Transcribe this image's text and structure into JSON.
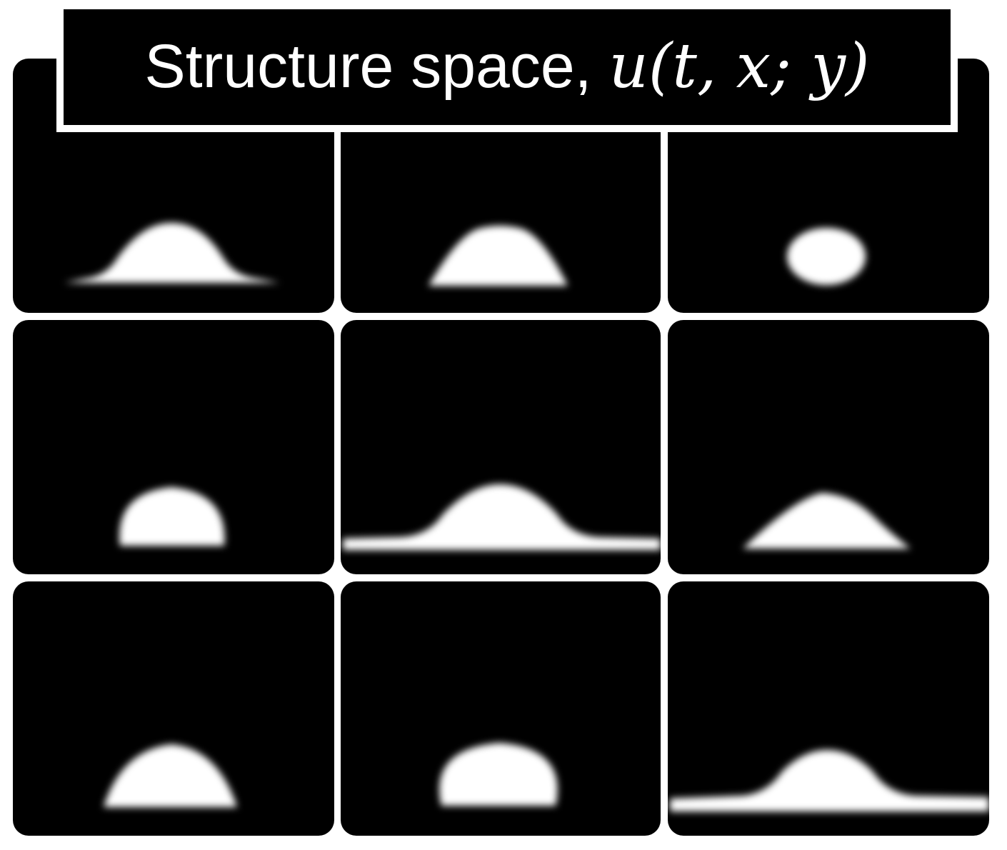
{
  "title": {
    "text": "Structure space, ",
    "math": "u(t, x; y)"
  },
  "grid": {
    "rows": 3,
    "cols": 3,
    "background_color": "#000000",
    "shape_color": "#ffffff",
    "separator_color": "#ffffff"
  }
}
